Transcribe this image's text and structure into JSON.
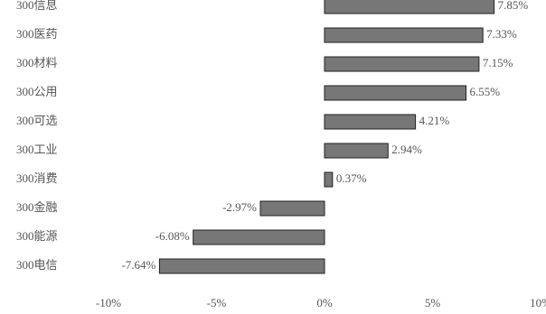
{
  "chart_data": {
    "type": "bar",
    "orientation": "horizontal",
    "categories": [
      "300信息",
      "300医药",
      "300材料",
      "300公用",
      "300可选",
      "300工业",
      "300消费",
      "300金融",
      "300能源",
      "300电信"
    ],
    "values": [
      7.85,
      7.33,
      7.15,
      6.55,
      4.21,
      2.94,
      0.37,
      -2.97,
      -6.08,
      -7.64
    ],
    "value_labels": [
      "7.85%",
      "7.33%",
      "7.15%",
      "6.55%",
      "4.21%",
      "2.94%",
      "0.37%",
      "-2.97%",
      "-6.08%",
      "-7.64%"
    ],
    "color": "#777777",
    "xlim": [
      -10,
      10
    ],
    "xticks": [
      {
        "value": -10,
        "label": "-10%"
      },
      {
        "value": -5,
        "label": "-5%"
      },
      {
        "value": 0,
        "label": "0%"
      },
      {
        "value": 5,
        "label": "5%"
      },
      {
        "value": 10,
        "label": "10%"
      }
    ]
  }
}
